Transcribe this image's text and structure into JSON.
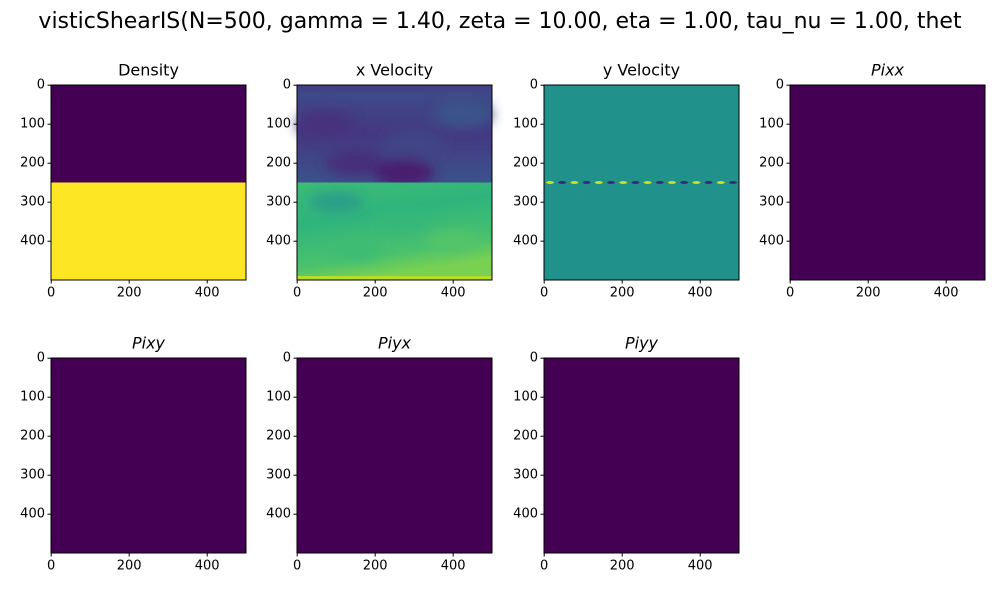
{
  "figure_title": "visticShearIS(N=500, gamma = 1.40, zeta = 10.00, eta = 1.00, tau_nu = 1.00, thet",
  "chart_data": [
    {
      "type": "image",
      "title": "Density",
      "xlim": [
        -0.5,
        499.5
      ],
      "ylim": [
        499.5,
        -0.5
      ],
      "xticks": [
        0,
        200,
        400
      ],
      "yticks": [
        0,
        100,
        200,
        300,
        400
      ]
    },
    {
      "type": "image",
      "title": "x Velocity",
      "xlim": [
        -0.5,
        499.5
      ],
      "ylim": [
        499.5,
        -0.5
      ],
      "xticks": [
        0,
        200,
        400
      ],
      "yticks": [
        0,
        100,
        200,
        300,
        400
      ]
    },
    {
      "type": "image",
      "title": "y Velocity",
      "xlim": [
        -0.5,
        499.5
      ],
      "ylim": [
        499.5,
        -0.5
      ],
      "xticks": [
        0,
        200,
        400
      ],
      "yticks": [
        0,
        100,
        200,
        300,
        400
      ]
    },
    {
      "type": "image",
      "title": "Pixx",
      "xlim": [
        -0.5,
        499.5
      ],
      "ylim": [
        499.5,
        -0.5
      ],
      "xticks": [
        0,
        200,
        400
      ],
      "yticks": [
        0,
        100,
        200,
        300,
        400
      ]
    },
    {
      "type": "image",
      "title": "Pixy",
      "xlim": [
        -0.5,
        499.5
      ],
      "ylim": [
        499.5,
        -0.5
      ],
      "xticks": [
        0,
        200,
        400
      ],
      "yticks": [
        0,
        100,
        200,
        300,
        400
      ]
    },
    {
      "type": "image",
      "title": "Piyx",
      "xlim": [
        -0.5,
        499.5
      ],
      "ylim": [
        499.5,
        -0.5
      ],
      "xticks": [
        0,
        200,
        400
      ],
      "yticks": [
        0,
        100,
        200,
        300,
        400
      ]
    },
    {
      "type": "image",
      "title": "Piyy",
      "xlim": [
        -0.5,
        499.5
      ],
      "ylim": [
        499.5,
        -0.5
      ],
      "xticks": [
        0,
        200,
        400
      ],
      "yticks": [
        0,
        100,
        200,
        300,
        400
      ]
    }
  ]
}
